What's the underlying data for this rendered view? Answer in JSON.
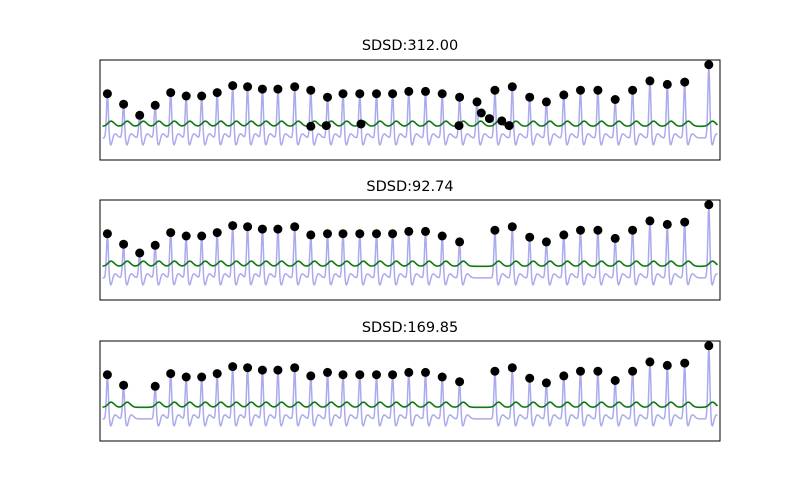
{
  "colors": {
    "signal": "#aaaaee",
    "envelope": "#117711",
    "peak": "#000000",
    "frame": "#000000"
  },
  "chart_data": [
    {
      "type": "line",
      "title": "SDSD:312.00",
      "xlabel": "",
      "ylabel": "",
      "ylim": [
        -1.3,
        3.0
      ],
      "grid": false,
      "axis_ticks": false,
      "peaks": [
        {
          "x": 0.012,
          "y": 1.55
        },
        {
          "x": 0.038,
          "y": 1.1
        },
        {
          "x": 0.064,
          "y": 0.62
        },
        {
          "x": 0.089,
          "y": 1.05
        },
        {
          "x": 0.114,
          "y": 1.6
        },
        {
          "x": 0.139,
          "y": 1.45
        },
        {
          "x": 0.164,
          "y": 1.45
        },
        {
          "x": 0.189,
          "y": 1.6
        },
        {
          "x": 0.214,
          "y": 1.9
        },
        {
          "x": 0.238,
          "y": 1.85
        },
        {
          "x": 0.262,
          "y": 1.75
        },
        {
          "x": 0.287,
          "y": 1.75
        },
        {
          "x": 0.314,
          "y": 1.85
        },
        {
          "x": 0.34,
          "y": 1.7
        },
        {
          "x": 0.367,
          "y": 1.4
        },
        {
          "x": 0.392,
          "y": 1.55
        },
        {
          "x": 0.419,
          "y": 1.55
        },
        {
          "x": 0.446,
          "y": 1.55
        },
        {
          "x": 0.472,
          "y": 1.55
        },
        {
          "x": 0.498,
          "y": 1.65
        },
        {
          "x": 0.525,
          "y": 1.65
        },
        {
          "x": 0.552,
          "y": 1.55
        },
        {
          "x": 0.58,
          "y": 1.4
        },
        {
          "x": 0.608,
          "y": 1.2
        },
        {
          "x": 0.637,
          "y": 1.7
        },
        {
          "x": 0.665,
          "y": 1.85
        },
        {
          "x": 0.693,
          "y": 1.4
        },
        {
          "x": 0.72,
          "y": 1.2
        },
        {
          "x": 0.748,
          "y": 1.5
        },
        {
          "x": 0.775,
          "y": 1.7
        },
        {
          "x": 0.803,
          "y": 1.7
        },
        {
          "x": 0.831,
          "y": 1.3
        },
        {
          "x": 0.859,
          "y": 1.7
        },
        {
          "x": 0.887,
          "y": 2.1
        },
        {
          "x": 0.915,
          "y": 1.95
        },
        {
          "x": 0.943,
          "y": 2.05
        },
        {
          "x": 0.982,
          "y": 2.8
        }
      ],
      "extra_points": [
        {
          "x": 0.34,
          "y": 0.15
        },
        {
          "x": 0.365,
          "y": 0.18
        },
        {
          "x": 0.421,
          "y": 0.25
        },
        {
          "x": 0.579,
          "y": 0.18
        },
        {
          "x": 0.615,
          "y": 0.72
        },
        {
          "x": 0.628,
          "y": 0.48
        },
        {
          "x": 0.648,
          "y": 0.38
        },
        {
          "x": 0.66,
          "y": 0.18
        }
      ]
    },
    {
      "type": "line",
      "title": "SDSD:92.74",
      "xlabel": "",
      "ylabel": "",
      "ylim": [
        -1.3,
        3.0
      ],
      "grid": false,
      "axis_ticks": false,
      "peaks": [
        {
          "x": 0.012,
          "y": 1.55
        },
        {
          "x": 0.038,
          "y": 1.1
        },
        {
          "x": 0.064,
          "y": 0.72
        },
        {
          "x": 0.089,
          "y": 1.05
        },
        {
          "x": 0.114,
          "y": 1.6
        },
        {
          "x": 0.139,
          "y": 1.45
        },
        {
          "x": 0.164,
          "y": 1.45
        },
        {
          "x": 0.189,
          "y": 1.6
        },
        {
          "x": 0.214,
          "y": 1.9
        },
        {
          "x": 0.238,
          "y": 1.85
        },
        {
          "x": 0.262,
          "y": 1.75
        },
        {
          "x": 0.287,
          "y": 1.75
        },
        {
          "x": 0.314,
          "y": 1.85
        },
        {
          "x": 0.34,
          "y": 1.5
        },
        {
          "x": 0.367,
          "y": 1.55
        },
        {
          "x": 0.392,
          "y": 1.55
        },
        {
          "x": 0.419,
          "y": 1.55
        },
        {
          "x": 0.446,
          "y": 1.55
        },
        {
          "x": 0.472,
          "y": 1.55
        },
        {
          "x": 0.498,
          "y": 1.65
        },
        {
          "x": 0.525,
          "y": 1.65
        },
        {
          "x": 0.552,
          "y": 1.45
        },
        {
          "x": 0.58,
          "y": 1.2
        },
        {
          "x": 0.637,
          "y": 1.7
        },
        {
          "x": 0.665,
          "y": 1.85
        },
        {
          "x": 0.693,
          "y": 1.4
        },
        {
          "x": 0.72,
          "y": 1.2
        },
        {
          "x": 0.748,
          "y": 1.5
        },
        {
          "x": 0.775,
          "y": 1.7
        },
        {
          "x": 0.803,
          "y": 1.7
        },
        {
          "x": 0.831,
          "y": 1.35
        },
        {
          "x": 0.859,
          "y": 1.7
        },
        {
          "x": 0.887,
          "y": 2.1
        },
        {
          "x": 0.915,
          "y": 1.95
        },
        {
          "x": 0.943,
          "y": 2.05
        },
        {
          "x": 0.982,
          "y": 2.8
        }
      ],
      "extra_points": []
    },
    {
      "type": "line",
      "title": "SDSD:169.85",
      "xlabel": "",
      "ylabel": "",
      "ylim": [
        -1.3,
        3.0
      ],
      "grid": false,
      "axis_ticks": false,
      "peaks": [
        {
          "x": 0.012,
          "y": 1.55
        },
        {
          "x": 0.038,
          "y": 1.1
        },
        {
          "x": 0.089,
          "y": 1.05
        },
        {
          "x": 0.114,
          "y": 1.6
        },
        {
          "x": 0.139,
          "y": 1.45
        },
        {
          "x": 0.164,
          "y": 1.45
        },
        {
          "x": 0.189,
          "y": 1.6
        },
        {
          "x": 0.214,
          "y": 1.9
        },
        {
          "x": 0.238,
          "y": 1.85
        },
        {
          "x": 0.262,
          "y": 1.75
        },
        {
          "x": 0.287,
          "y": 1.75
        },
        {
          "x": 0.314,
          "y": 1.85
        },
        {
          "x": 0.34,
          "y": 1.5
        },
        {
          "x": 0.367,
          "y": 1.65
        },
        {
          "x": 0.392,
          "y": 1.55
        },
        {
          "x": 0.419,
          "y": 1.55
        },
        {
          "x": 0.446,
          "y": 1.55
        },
        {
          "x": 0.472,
          "y": 1.55
        },
        {
          "x": 0.498,
          "y": 1.65
        },
        {
          "x": 0.525,
          "y": 1.65
        },
        {
          "x": 0.552,
          "y": 1.45
        },
        {
          "x": 0.58,
          "y": 1.25
        },
        {
          "x": 0.637,
          "y": 1.7
        },
        {
          "x": 0.665,
          "y": 1.85
        },
        {
          "x": 0.693,
          "y": 1.4
        },
        {
          "x": 0.72,
          "y": 1.2
        },
        {
          "x": 0.748,
          "y": 1.5
        },
        {
          "x": 0.775,
          "y": 1.7
        },
        {
          "x": 0.803,
          "y": 1.7
        },
        {
          "x": 0.831,
          "y": 1.3
        },
        {
          "x": 0.859,
          "y": 1.7
        },
        {
          "x": 0.887,
          "y": 2.1
        },
        {
          "x": 0.915,
          "y": 1.95
        },
        {
          "x": 0.943,
          "y": 2.05
        },
        {
          "x": 0.982,
          "y": 2.8
        }
      ],
      "extra_points": []
    }
  ]
}
